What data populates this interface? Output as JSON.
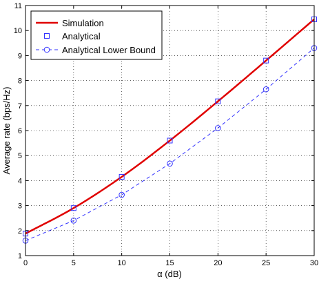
{
  "chart_data": {
    "type": "line",
    "xlabel": "α (dB)",
    "ylabel": "Average rate (bps/Hz)",
    "xlim": [
      0,
      30
    ],
    "ylim": [
      1,
      11
    ],
    "x_ticks": [
      0,
      5,
      10,
      15,
      20,
      25,
      30
    ],
    "y_ticks": [
      1,
      2,
      3,
      4,
      5,
      6,
      7,
      8,
      9,
      10,
      11
    ],
    "legend_position": "top-left",
    "series": [
      {
        "name": "Simulation",
        "color": "#e00000",
        "style": "solid-line",
        "x": [
          0,
          5,
          10,
          15,
          20,
          25,
          30
        ],
        "values": [
          1.88,
          2.9,
          4.15,
          5.6,
          7.17,
          8.8,
          10.45
        ]
      },
      {
        "name": "Analytical",
        "color": "#3333ff",
        "style": "square-markers",
        "x": [
          0,
          5,
          10,
          15,
          20,
          25,
          30
        ],
        "values": [
          1.88,
          2.9,
          4.15,
          5.6,
          7.17,
          8.8,
          10.45
        ]
      },
      {
        "name": "Analytical Lower Bound",
        "color": "#3333ff",
        "style": "dashed-circle-markers",
        "x": [
          0,
          5,
          10,
          15,
          20,
          25,
          30
        ],
        "values": [
          1.6,
          2.4,
          3.43,
          4.68,
          6.1,
          7.65,
          9.3
        ]
      }
    ]
  }
}
